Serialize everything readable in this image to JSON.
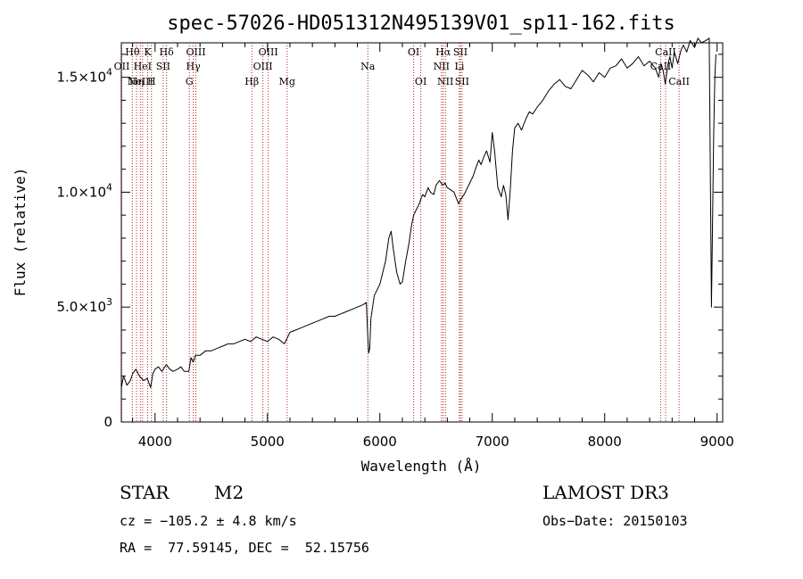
{
  "chart_data": {
    "type": "line",
    "title": "spec-57026-HD051312N495139V01_sp11-162.fits",
    "xlabel": "Wavelength (Å)",
    "ylabel": "Flux (relative)",
    "xlim": [
      3700,
      9050
    ],
    "ylim": [
      0,
      16500
    ],
    "xticks": [
      {
        "value": 4000,
        "label": "4000"
      },
      {
        "value": 5000,
        "label": "5000"
      },
      {
        "value": 6000,
        "label": "6000"
      },
      {
        "value": 7000,
        "label": "7000"
      },
      {
        "value": 8000,
        "label": "8000"
      },
      {
        "value": 9000,
        "label": "9000"
      }
    ],
    "yticks": [
      {
        "value": 0,
        "mant": "0",
        "exp": ""
      },
      {
        "value": 5000,
        "mant": "5.0×10",
        "exp": "3"
      },
      {
        "value": 10000,
        "mant": "1.0×10",
        "exp": "4"
      },
      {
        "value": 15000,
        "mant": "1.5×10",
        "exp": "4"
      }
    ],
    "series": [
      {
        "x": [
          3700,
          3720,
          3750,
          3780,
          3800,
          3830,
          3860,
          3900,
          3930,
          3960,
          3980,
          4000,
          4030,
          4060,
          4100,
          4130,
          4160,
          4200,
          4230,
          4260,
          4300,
          4320,
          4340,
          4360,
          4400,
          4450,
          4500,
          4550,
          4600,
          4650,
          4700,
          4750,
          4800,
          4850,
          4900,
          4950,
          5000,
          5050,
          5100,
          5150,
          5180,
          5200,
          5250,
          5300,
          5350,
          5400,
          5450,
          5500,
          5550,
          5600,
          5650,
          5700,
          5750,
          5800,
          5850,
          5880,
          5890,
          5900,
          5910,
          5920,
          5950,
          6000,
          6050,
          6080,
          6100,
          6120,
          6150,
          6180,
          6200,
          6230,
          6260,
          6280,
          6300,
          6320,
          6350,
          6380,
          6400,
          6430,
          6450,
          6480,
          6500,
          6530,
          6560,
          6580,
          6600,
          6630,
          6660,
          6700,
          6720,
          6750,
          6780,
          6800,
          6830,
          6850,
          6880,
          6900,
          6930,
          6950,
          6980,
          7000,
          7020,
          7050,
          7080,
          7100,
          7120,
          7140,
          7160,
          7180,
          7200,
          7230,
          7260,
          7300,
          7330,
          7360,
          7400,
          7450,
          7500,
          7550,
          7600,
          7650,
          7700,
          7750,
          7800,
          7850,
          7900,
          7950,
          8000,
          8050,
          8100,
          8150,
          8200,
          8250,
          8300,
          8350,
          8400,
          8450,
          8480,
          8500,
          8520,
          8540,
          8560,
          8580,
          8600,
          8620,
          8650,
          8680,
          8700,
          8730,
          8760,
          8800,
          8830,
          8860,
          8900,
          8930,
          8950,
          8970,
          8980,
          8990
        ],
        "y": [
          1500,
          2000,
          1600,
          1800,
          2100,
          2300,
          2000,
          1800,
          1900,
          1500,
          2100,
          2300,
          2400,
          2200,
          2500,
          2300,
          2200,
          2300,
          2400,
          2200,
          2200,
          2800,
          2600,
          2900,
          2900,
          3100,
          3100,
          3200,
          3300,
          3400,
          3400,
          3500,
          3600,
          3500,
          3700,
          3600,
          3500,
          3700,
          3600,
          3400,
          3700,
          3900,
          4000,
          4100,
          4200,
          4300,
          4400,
          4500,
          4600,
          4600,
          4700,
          4800,
          4900,
          5000,
          5100,
          5200,
          4000,
          3000,
          3200,
          4500,
          5500,
          6000,
          7000,
          8000,
          8300,
          7500,
          6500,
          6000,
          6100,
          7000,
          7800,
          8500,
          9000,
          9200,
          9500,
          9900,
          9800,
          10200,
          10000,
          9900,
          10300,
          10500,
          10300,
          10400,
          10200,
          10100,
          10000,
          9500,
          9700,
          9900,
          10200,
          10400,
          10700,
          11000,
          11400,
          11200,
          11600,
          11800,
          11300,
          12600,
          11800,
          10200,
          9800,
          10300,
          9900,
          8800,
          10100,
          11800,
          12800,
          13000,
          12700,
          13200,
          13500,
          13400,
          13700,
          14000,
          14400,
          14700,
          14900,
          14600,
          14500,
          14900,
          15300,
          15100,
          14800,
          15200,
          15000,
          15400,
          15500,
          15800,
          15400,
          15600,
          15900,
          15500,
          15700,
          15400,
          15000,
          15600,
          15300,
          14700,
          15500,
          15900,
          15400,
          16100,
          15600,
          16200,
          16400,
          16100,
          16600,
          16300,
          16700,
          16500,
          16600,
          16700,
          5000,
          12500,
          15000,
          16000
        ]
      }
    ],
    "spectral_lines": [
      {
        "wave": 3704,
        "label": "OII",
        "row": 2
      },
      {
        "wave": 3798,
        "label": "Hθ",
        "row": 1
      },
      {
        "wave": 3835,
        "label": "Hη",
        "row": 3
      },
      {
        "wave": 3869,
        "label": "NeIII",
        "row": 3
      },
      {
        "wave": 3889,
        "label": "HeI",
        "row": 2
      },
      {
        "wave": 3934,
        "label": "K",
        "row": 1
      },
      {
        "wave": 3968,
        "label": "H",
        "row": 3
      },
      {
        "wave": 4072,
        "label": "SII",
        "row": 2
      },
      {
        "wave": 4102,
        "label": "Hδ",
        "row": 1
      },
      {
        "wave": 4305,
        "label": "G",
        "row": 3
      },
      {
        "wave": 4340,
        "label": "Hγ",
        "row": 2
      },
      {
        "wave": 4363,
        "label": "OIII",
        "row": 1
      },
      {
        "wave": 4861,
        "label": "Hβ",
        "row": 3
      },
      {
        "wave": 4959,
        "label": "OIII",
        "row": 2
      },
      {
        "wave": 5007,
        "label": "OIII",
        "row": 1
      },
      {
        "wave": 5175,
        "label": "Mg",
        "row": 3
      },
      {
        "wave": 5893,
        "label": "Na",
        "row": 2
      },
      {
        "wave": 6300,
        "label": "OI",
        "row": 1
      },
      {
        "wave": 6364,
        "label": "OI",
        "row": 3
      },
      {
        "wave": 6548,
        "label": "NII",
        "row": 2
      },
      {
        "wave": 6563,
        "label": "Hα",
        "row": 1
      },
      {
        "wave": 6583,
        "label": "NII",
        "row": 3
      },
      {
        "wave": 6708,
        "label": "Li",
        "row": 2
      },
      {
        "wave": 6716,
        "label": "SII",
        "row": 1
      },
      {
        "wave": 6731,
        "label": "SII",
        "row": 3
      },
      {
        "wave": 8498,
        "label": "CaII",
        "row": 2
      },
      {
        "wave": 8542,
        "label": "CaII",
        "row": 1
      },
      {
        "wave": 8662,
        "label": "CaII",
        "row": 3
      }
    ]
  },
  "info": {
    "object_class": "STAR",
    "subclass": "M2",
    "survey": "LAMOST DR3",
    "cz": "cz = −105.2 ± 4.8 km/s",
    "obs_date": "Obs−Date: 20150103",
    "radec": "RA =  77.59145, DEC =  52.15756"
  },
  "colors": {
    "line_marker": "#b0231f",
    "spectrum": "#000000"
  }
}
